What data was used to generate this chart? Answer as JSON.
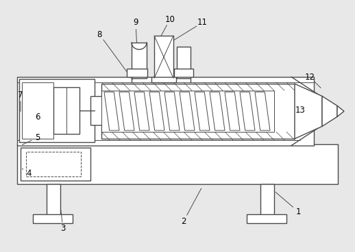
{
  "bg_color": "#e8e8e8",
  "line_color": "#4a4a4a",
  "lw": 1.0,
  "tlw": 0.7,
  "leaders": [
    [
      "1",
      435,
      308,
      400,
      278
    ],
    [
      "2",
      268,
      322,
      295,
      272
    ],
    [
      "3",
      92,
      333,
      88,
      300
    ],
    [
      "4",
      42,
      252,
      30,
      244
    ],
    [
      "5",
      55,
      200,
      30,
      212
    ],
    [
      "6",
      55,
      170,
      38,
      160
    ],
    [
      "7",
      30,
      138,
      30,
      165
    ],
    [
      "8",
      145,
      50,
      195,
      118
    ],
    [
      "9",
      198,
      33,
      200,
      73
    ],
    [
      "10",
      248,
      28,
      232,
      58
    ],
    [
      "11",
      295,
      33,
      248,
      62
    ],
    [
      "12",
      452,
      112,
      470,
      130
    ],
    [
      "13",
      438,
      160,
      462,
      162
    ]
  ]
}
